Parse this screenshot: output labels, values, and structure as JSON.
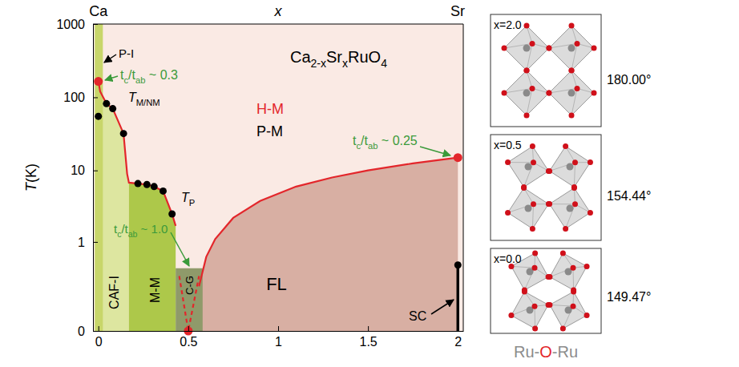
{
  "chart_data": {
    "type": "area",
    "ylabel": [
      {
        "it": "T"
      },
      "(K)"
    ],
    "xlim": [
      -0.03,
      2.03
    ],
    "xticks": [
      0,
      0.5,
      1,
      1.5,
      2
    ],
    "ylim": [
      0,
      1000
    ],
    "yticks": [
      0,
      1,
      10,
      100,
      1000
    ],
    "log": "y",
    "series": [
      {
        "type": "area",
        "label": "FL",
        "color": "#d8afa3",
        "x": [
          0.5,
          0.56,
          0.6,
          0.65,
          0.75,
          0.9,
          1.1,
          1.3,
          1.5,
          1.75,
          2,
          2
        ],
        "values": [
          0,
          0.2,
          0.6,
          1.1,
          2.2,
          3.8,
          6,
          8,
          10,
          12.5,
          15,
          0
        ]
      },
      {
        "type": "area",
        "label": "CAF-I",
        "color": "#dde6a0",
        "x": [
          0,
          0,
          0.01,
          0.045,
          0.08,
          0.14,
          0.16,
          0.17,
          0.17
        ],
        "values": [
          0,
          165,
          120,
          82,
          70,
          32,
          9,
          6.8,
          0
        ]
      },
      {
        "type": "area",
        "label": "M-M",
        "color": "#adc84a",
        "x": [
          0.17,
          0.17,
          0.22,
          0.27,
          0.31,
          0.36,
          0.41,
          0.43,
          0.43
        ],
        "values": [
          0,
          6.8,
          6.6,
          6.4,
          6.0,
          5.2,
          2.5,
          1.7,
          0
        ]
      },
      {
        "type": "area",
        "label": "P-I",
        "color": "#c8d66a",
        "x": [
          -0.02,
          -0.02,
          0.025,
          0.025
        ],
        "values": [
          0,
          1000,
          1000,
          0
        ]
      },
      {
        "type": "area",
        "label": "C-G",
        "color": "#8f9a6a",
        "x": [
          0.43,
          0.43,
          0.58,
          0.58
        ],
        "values": [
          0,
          0.4,
          0.4,
          0
        ]
      },
      {
        "type": "line",
        "color": "#e3262b",
        "line_style": "solid",
        "x": [
          0,
          0.01,
          0.045,
          0.08,
          0.14,
          0.16,
          0.17,
          0.22,
          0.27,
          0.31,
          0.36,
          0.41,
          0.43
        ],
        "values": [
          165,
          120,
          82,
          70,
          32,
          9,
          6.8,
          6.6,
          6.4,
          6.0,
          5.2,
          2.5,
          1.7
        ]
      },
      {
        "type": "line",
        "color": "#e3262b",
        "line_style": "solid",
        "x": [
          0.56,
          0.6,
          0.65,
          0.75,
          0.9,
          1.1,
          1.3,
          1.5,
          1.75,
          2
        ],
        "values": [
          0.2,
          0.6,
          1.1,
          2.2,
          3.8,
          6,
          8,
          10,
          12.5,
          15
        ]
      },
      {
        "type": "line",
        "color": "#e3262b",
        "line_style": "dashed",
        "x": [
          0.45,
          0.5,
          0.56
        ],
        "values": [
          0.3,
          0,
          0.3
        ]
      },
      {
        "type": "line",
        "label": "SC",
        "color": "#000000",
        "line_style": "solid",
        "x": [
          2,
          2
        ],
        "values": [
          0,
          0.45
        ]
      },
      {
        "type": "scatter",
        "color": "#e3262b",
        "marker": "circle",
        "x": [
          0,
          0.5,
          2
        ],
        "values": [
          165,
          0,
          15
        ]
      },
      {
        "type": "scatter",
        "color": "#000000",
        "marker": "circle",
        "x": [
          0,
          0.045,
          0.08,
          0.14,
          0.22,
          0.27,
          0.31,
          0.36,
          0.41,
          2
        ],
        "values": [
          55,
          82,
          70,
          32,
          6.6,
          6.4,
          6.0,
          5.2,
          2.5,
          0.45
        ]
      }
    ],
    "annotations": [
      {
        "text": [
          "Ca"
        ],
        "color": "#000000"
      },
      {
        "text": [
          {
            "it": "x"
          }
        ],
        "color": "#000000"
      },
      {
        "text": [
          "Sr"
        ],
        "color": "#000000"
      },
      {
        "text": [
          "t",
          {
            "sub": "c"
          },
          "/t",
          {
            "sub": "ab"
          },
          " ~ 0.3"
        ],
        "color": "#3a9a3a"
      },
      {
        "text": [
          {
            "it": "T"
          },
          {
            "sub": "M/NM"
          }
        ],
        "color": "#000000"
      },
      {
        "text": [
          "Ca",
          {
            "sub": "2-x"
          },
          "Sr",
          {
            "sub": "x"
          },
          "RuO",
          {
            "sub": "4"
          }
        ],
        "color": "#000000"
      },
      {
        "text": [
          "H-M"
        ],
        "color": "#e3262b"
      },
      {
        "text": [
          "P-M"
        ],
        "color": "#000000"
      },
      {
        "text": [
          "t",
          {
            "sub": "c"
          },
          "/t",
          {
            "sub": "ab"
          },
          " ~ 0.25"
        ],
        "color": "#3a9a3a"
      },
      {
        "text": [
          {
            "it": "T"
          },
          {
            "sub": "P"
          }
        ],
        "color": "#000000"
      },
      {
        "text": [
          "t",
          {
            "sub": "c"
          },
          "/t",
          {
            "sub": "ab"
          },
          " ~ 1.0"
        ],
        "color": "#3a9a3a"
      }
    ]
  },
  "structures": [
    {
      "label": "x=2.0",
      "angle": "180.00°"
    },
    {
      "label": "x=0.5",
      "angle": "154.44°"
    },
    {
      "label": "x=0.0",
      "angle": "149.47°"
    }
  ],
  "structure_caption": [
    "Ru-",
    {
      "text": "O",
      "color": "#e3262b"
    },
    "-Ru"
  ]
}
